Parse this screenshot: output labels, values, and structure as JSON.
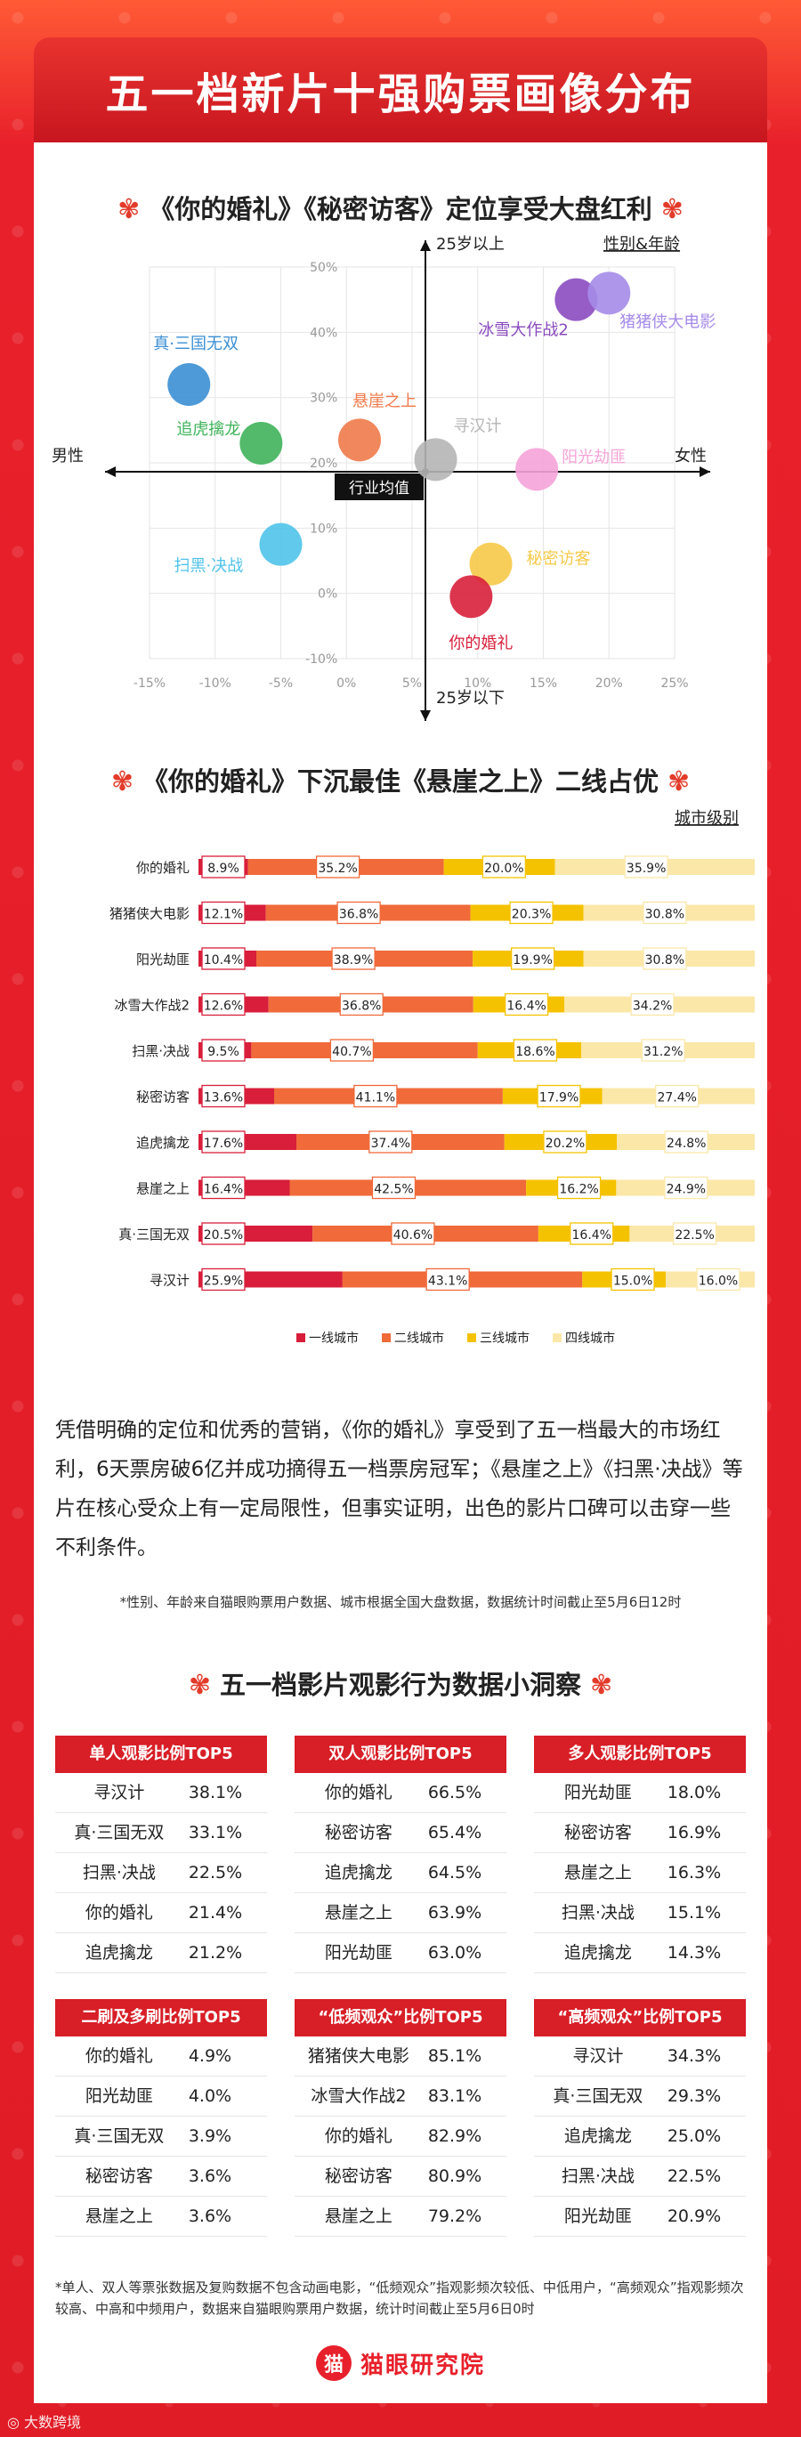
{
  "main_title": "五一档新片十强购票画像分布",
  "section1_title": "《你的婚礼》《秘密访客》定位享受大盘红利",
  "section2_title": "《你的婚礼》下沉最佳《悬崖之上》二线占优",
  "section3_title": "五一档影片观影行为数据小洞察",
  "paragraph": "凭借明确的定位和优秀的营销，《你的婚礼》享受到了五一档最大的市场红利，6天票房破6亿并成功摘得五一档票房冠军；《悬崖之上》《扫黑·决战》等片在核心受众上有一定局限性，但事实证明，出色的影片口碑可以击穿一些不利条件。",
  "note1": "*性别、年龄来自猫眼购票用户数据、城市根据全国大盘数据，数据统计时间截止至5月6日12时",
  "note2": "*单人、双人等票张数据及复购数据不包含动画电影，“低频观众”指观影频次较低、中低用户，“高频观众”指观影频次较高、中高和中频用户，数据来自猫眼购票用户数据，统计时间截止至5月6日0时",
  "logo_text": "猫眼研究院",
  "logo_mark": "猫",
  "watermark": "大数跨境",
  "colors": {
    "tier1": "#d81e3a",
    "tier2": "#f06a3a",
    "tier3": "#f5c200",
    "tier4": "#fbe7a8",
    "accent": "#d81e26"
  },
  "chart_data": [
    {
      "type": "scatter",
      "title": "",
      "legend_label": "性别&年龄",
      "x_left_label": "男性",
      "x_right_label": "女性",
      "y_top_label": "25岁以上",
      "y_bottom_label": "25岁以下",
      "center_label": "行业均值",
      "xlim": [
        -15,
        25
      ],
      "ylim": [
        -10,
        50
      ],
      "x_ticks": [
        "-15%",
        "-10%",
        "-5%",
        "0%",
        "5%",
        "10%",
        "15%",
        "20%",
        "25%"
      ],
      "y_ticks": [
        "-10%",
        "0%",
        "10%",
        "20%",
        "30%",
        "40%",
        "50%"
      ],
      "points": [
        {
          "name": "真·三国无双",
          "x": -12,
          "y": 32,
          "color": "#3b8fd4"
        },
        {
          "name": "追虎擒龙",
          "x": -6.5,
          "y": 23,
          "color": "#3fb35a"
        },
        {
          "name": "悬崖之上",
          "x": 1,
          "y": 23.5,
          "color": "#f07a4a"
        },
        {
          "name": "寻汉计",
          "x": 6.8,
          "y": 20.5,
          "color": "#b5b5b5"
        },
        {
          "name": "冰雪大作战2",
          "x": 17.5,
          "y": 45,
          "color": "#8a4bbf"
        },
        {
          "name": "猪猪侠大电影",
          "x": 20,
          "y": 46,
          "color": "#a58be8"
        },
        {
          "name": "阳光劫匪",
          "x": 14.5,
          "y": 19,
          "color": "#f5a3d8"
        },
        {
          "name": "扫黑·决战",
          "x": -5,
          "y": 7.5,
          "color": "#4fc3ea"
        },
        {
          "name": "秘密访客",
          "x": 11,
          "y": 4.5,
          "color": "#f7c948"
        },
        {
          "name": "你的婚礼",
          "x": 9.5,
          "y": -0.5,
          "color": "#d8203c"
        }
      ]
    },
    {
      "type": "bar",
      "title": "",
      "legend_label": "城市级别",
      "stacked": true,
      "categories": [
        "你的婚礼",
        "猪猪侠大电影",
        "阳光劫匪",
        "冰雪大作战2",
        "扫黑·决战",
        "秘密访客",
        "追虎擒龙",
        "悬崖之上",
        "真·三国无双",
        "寻汉计"
      ],
      "series": [
        {
          "name": "一线城市",
          "values": [
            8.9,
            12.1,
            10.4,
            12.6,
            9.5,
            13.6,
            17.6,
            16.4,
            20.5,
            25.9
          ]
        },
        {
          "name": "二线城市",
          "values": [
            35.2,
            36.8,
            38.9,
            36.8,
            40.7,
            41.1,
            37.4,
            42.5,
            40.6,
            43.1
          ]
        },
        {
          "name": "三线城市",
          "values": [
            20.0,
            20.3,
            19.9,
            16.4,
            18.6,
            17.9,
            20.2,
            16.2,
            16.4,
            15.0
          ]
        },
        {
          "name": "四线城市",
          "values": [
            35.9,
            30.8,
            30.8,
            34.2,
            31.2,
            27.4,
            24.8,
            24.9,
            22.5,
            16.0
          ]
        }
      ]
    }
  ],
  "tables": [
    {
      "title": "单人观影比例TOP5",
      "rows": [
        [
          "寻汉计",
          "38.1%"
        ],
        [
          "真·三国无双",
          "33.1%"
        ],
        [
          "扫黑·决战",
          "22.5%"
        ],
        [
          "你的婚礼",
          "21.4%"
        ],
        [
          "追虎擒龙",
          "21.2%"
        ]
      ]
    },
    {
      "title": "双人观影比例TOP5",
      "rows": [
        [
          "你的婚礼",
          "66.5%"
        ],
        [
          "秘密访客",
          "65.4%"
        ],
        [
          "追虎擒龙",
          "64.5%"
        ],
        [
          "悬崖之上",
          "63.9%"
        ],
        [
          "阳光劫匪",
          "63.0%"
        ]
      ]
    },
    {
      "title": "多人观影比例TOP5",
      "rows": [
        [
          "阳光劫匪",
          "18.0%"
        ],
        [
          "秘密访客",
          "16.9%"
        ],
        [
          "悬崖之上",
          "16.3%"
        ],
        [
          "扫黑·决战",
          "15.1%"
        ],
        [
          "追虎擒龙",
          "14.3%"
        ]
      ]
    },
    {
      "title": "二刷及多刷比例TOP5",
      "rows": [
        [
          "你的婚礼",
          "4.9%"
        ],
        [
          "阳光劫匪",
          "4.0%"
        ],
        [
          "真·三国无双",
          "3.9%"
        ],
        [
          "秘密访客",
          "3.6%"
        ],
        [
          "悬崖之上",
          "3.6%"
        ]
      ]
    },
    {
      "title": "“低频观众”比例TOP5",
      "rows": [
        [
          "猪猪侠大电影",
          "85.1%"
        ],
        [
          "冰雪大作战2",
          "83.1%"
        ],
        [
          "你的婚礼",
          "82.9%"
        ],
        [
          "秘密访客",
          "80.9%"
        ],
        [
          "悬崖之上",
          "79.2%"
        ]
      ]
    },
    {
      "title": "“高频观众”比例TOP5",
      "rows": [
        [
          "寻汉计",
          "34.3%"
        ],
        [
          "真·三国无双",
          "29.3%"
        ],
        [
          "追虎擒龙",
          "25.0%"
        ],
        [
          "扫黑·决战",
          "22.5%"
        ],
        [
          "阳光劫匪",
          "20.9%"
        ]
      ]
    }
  ]
}
